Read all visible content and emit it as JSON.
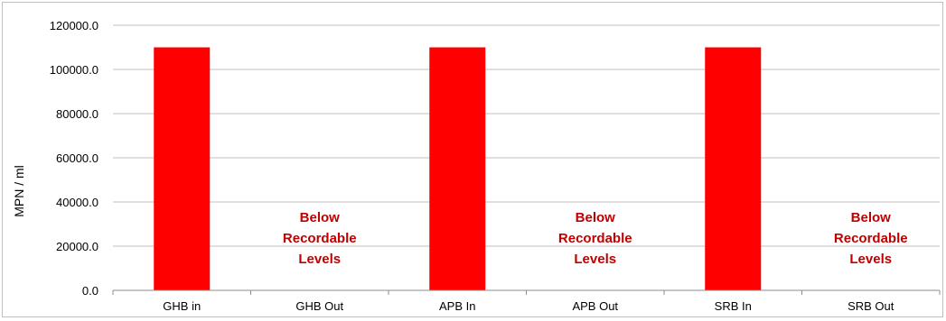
{
  "chart_data": {
    "type": "bar",
    "categories": [
      "GHB in",
      "GHB Out",
      "APB In",
      "APB Out",
      "SRB In",
      "SRB Out"
    ],
    "values": [
      110000,
      0,
      110000,
      0,
      110000,
      0
    ],
    "title": "",
    "xlabel": "",
    "ylabel": "MPN / ml",
    "ylim": [
      0,
      120000
    ],
    "yticks": [
      "0.0",
      "20000.0",
      "40000.0",
      "60000.0",
      "80000.0",
      "100000.0",
      "120000.0"
    ],
    "grid": true,
    "bar_color": "#ff0000",
    "annotation_color": "#c00000",
    "annotations": [
      {
        "category": "GHB Out",
        "lines": [
          "Below",
          "Recordable",
          "Levels"
        ]
      },
      {
        "category": "APB Out",
        "lines": [
          "Below",
          "Recordable",
          "Levels"
        ]
      },
      {
        "category": "SRB Out",
        "lines": [
          "Below",
          "Recordable",
          "Levels"
        ]
      }
    ]
  }
}
